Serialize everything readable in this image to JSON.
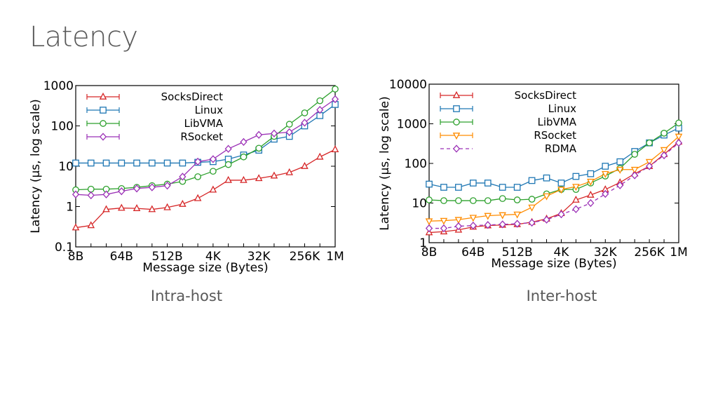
{
  "slide": {
    "title": "Latency",
    "captions": [
      "Intra-host",
      "Inter-host"
    ]
  },
  "chart_data": [
    {
      "id": "intra",
      "type": "line",
      "title": "Intra-host",
      "xlabel": "Message size (Bytes)",
      "ylabel": "Latency (µs, log scale)",
      "yscale": "log",
      "ylim": [
        0.1,
        1000
      ],
      "yticks": [
        "0.1",
        "1",
        "10",
        "100",
        "1000"
      ],
      "x": [
        8,
        16,
        32,
        64,
        128,
        256,
        512,
        1024,
        2048,
        4096,
        8192,
        16384,
        32768,
        65536,
        131072,
        262144,
        524288,
        1048576
      ],
      "xtick_labels": [
        "8B",
        "64B",
        "512B",
        "4K",
        "32K",
        "256K",
        "1M"
      ],
      "legend_position": "top-left",
      "series": [
        {
          "name": "SocksDirect",
          "color": "#d62728",
          "marker": "triangle",
          "dash": "solid",
          "values": [
            0.3,
            0.34,
            0.85,
            0.92,
            0.9,
            0.85,
            0.95,
            1.15,
            1.6,
            2.6,
            4.5,
            4.5,
            5.0,
            5.8,
            7.0,
            10.0,
            17.0,
            26.0
          ]
        },
        {
          "name": "Linux",
          "color": "#1f77b4",
          "marker": "square",
          "dash": "solid",
          "values": [
            12,
            12,
            12,
            12,
            12,
            12,
            12,
            12,
            12.5,
            13,
            15,
            19,
            25,
            47,
            55,
            100,
            180,
            340
          ]
        },
        {
          "name": "LibVMA",
          "color": "#2ca02c",
          "marker": "circle",
          "dash": "solid",
          "values": [
            2.6,
            2.7,
            2.7,
            2.8,
            3.0,
            3.3,
            3.6,
            4.2,
            5.5,
            7.5,
            11,
            17,
            28,
            55,
            110,
            210,
            420,
            820
          ]
        },
        {
          "name": "RSocket",
          "color": "#9b30b6",
          "marker": "diamond",
          "dash": "solid",
          "values": [
            2.0,
            1.9,
            2.0,
            2.4,
            2.8,
            3.0,
            3.3,
            5.5,
            13,
            15,
            27,
            40,
            60,
            65,
            70,
            120,
            250,
            460
          ]
        }
      ]
    },
    {
      "id": "inter",
      "type": "line",
      "title": "Inter-host",
      "xlabel": "Message size (Bytes)",
      "ylabel": "Latency (µs, log scale)",
      "yscale": "log",
      "ylim": [
        1,
        10000
      ],
      "yticks": [
        "1",
        "10",
        "100",
        "1000",
        "10000"
      ],
      "x": [
        8,
        16,
        32,
        64,
        128,
        256,
        512,
        1024,
        2048,
        4096,
        8192,
        16384,
        32768,
        65536,
        131072,
        262144,
        524288,
        1048576
      ],
      "xtick_labels": [
        "8B",
        "64B",
        "512B",
        "4K",
        "32K",
        "256K",
        "1M"
      ],
      "legend_position": "top-left",
      "series": [
        {
          "name": "SocksDirect",
          "color": "#d62728",
          "marker": "triangle",
          "dash": "solid",
          "values": [
            1.8,
            1.9,
            2.1,
            2.5,
            2.7,
            2.8,
            2.9,
            3.3,
            4.0,
            5.5,
            12,
            16,
            22,
            33,
            55,
            85,
            170,
            350
          ]
        },
        {
          "name": "Linux",
          "color": "#1f77b4",
          "marker": "square",
          "dash": "solid",
          "values": [
            30,
            25,
            25,
            32,
            32,
            25,
            25,
            37,
            43,
            32,
            47,
            55,
            85,
            110,
            200,
            330,
            520,
            780
          ]
        },
        {
          "name": "LibVMA",
          "color": "#2ca02c",
          "marker": "circle",
          "dash": "solid",
          "values": [
            12,
            11.5,
            11.5,
            11.5,
            11.5,
            13,
            12,
            12.5,
            17,
            22,
            22,
            32,
            48,
            75,
            170,
            330,
            580,
            1050
          ]
        },
        {
          "name": "RSocket",
          "color": "#ff8c00",
          "marker": "triangle-down",
          "dash": "solid",
          "values": [
            3.5,
            3.6,
            3.8,
            4.3,
            4.8,
            5.0,
            5.2,
            7.8,
            15,
            22,
            26,
            35,
            55,
            70,
            70,
            110,
            220,
            480
          ]
        },
        {
          "name": "RDMA",
          "color": "#9b30b6",
          "marker": "diamond",
          "dash": "dashed",
          "values": [
            2.3,
            2.3,
            2.6,
            2.7,
            2.8,
            2.9,
            3.0,
            3.2,
            3.8,
            5.2,
            7.0,
            10,
            17,
            28,
            50,
            85,
            160,
            330
          ]
        }
      ]
    }
  ]
}
